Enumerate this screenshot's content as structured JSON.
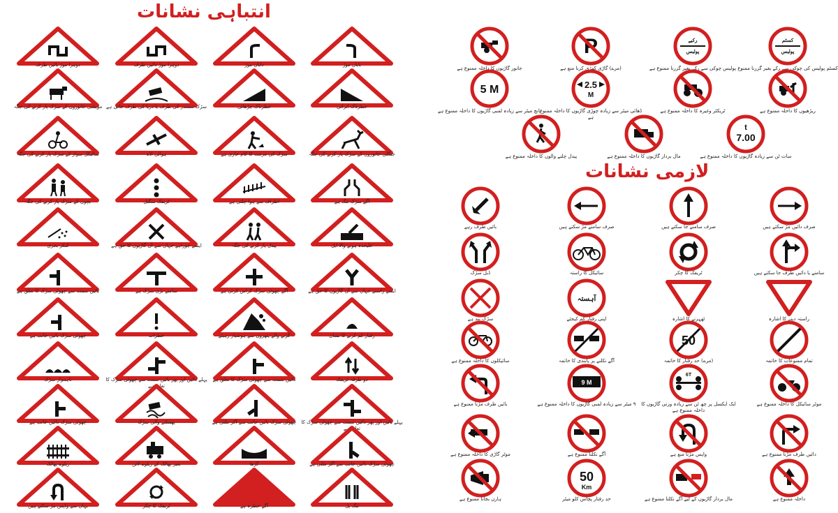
{
  "warning_title": "انتباہی نشانات",
  "mandatory_title": "لازمی نشانات",
  "warning_signs": [
    {
      "label": "دوہرا موڑ بائیں طرف",
      "icon": "double-bend-left-icon",
      "g": "dbl"
    },
    {
      "label": "دوہرا موڑ دائیں طرف",
      "icon": "double-bend-right-icon",
      "g": "dbr"
    },
    {
      "label": "دایاں موڑ",
      "icon": "right-bend-icon",
      "g": "rb"
    },
    {
      "label": "بایاں موڑ",
      "icon": "left-bend-icon",
      "g": "lb"
    },
    {
      "label": "مویشی جانوروں کے سڑک پار کرنے کی جگہ",
      "icon": "cattle-crossing-icon",
      "g": "cow"
    },
    {
      "label": "سڑک سمندر کی طرف یا دریا کی طرف جاتی ہے",
      "icon": "quayside-icon",
      "g": "car"
    },
    {
      "label": "خطرناک چڑھائی",
      "icon": "steep-ascent-icon",
      "g": "up"
    },
    {
      "label": "خطرناک اترائی",
      "icon": "steep-descent-icon",
      "g": "down"
    },
    {
      "label": "سائیکل سوار کے سڑک پار کرنے کی جگہ",
      "icon": "cyclist-crossing-icon",
      "g": "bike"
    },
    {
      "label": "ہوائی اڈہ",
      "icon": "airport-icon",
      "g": "plane"
    },
    {
      "label": "سڑک کی مرمت کا کام جاری ہے",
      "icon": "road-works-icon",
      "g": "work"
    },
    {
      "label": "جنگلی جانوروں کے سڑک پار کرنے کی جگہ",
      "icon": "wild-animal-crossing-icon",
      "g": "deer"
    },
    {
      "label": "بچوں کے سڑک پار کرنے کی جگہ",
      "icon": "children-crossing-icon",
      "g": "kids"
    },
    {
      "label": "ٹریفک سگنل",
      "icon": "traffic-signal-icon",
      "g": "signal"
    },
    {
      "label": "اطراف سے ہوا چلتی ہے",
      "icon": "side-wind-icon",
      "g": "wind"
    },
    {
      "label": "آگے سڑک تنگ ہے",
      "icon": "road-narrows-icon",
      "g": "narrow"
    },
    {
      "label": "کنکر بجری",
      "icon": "loose-gravel-icon",
      "g": "gravel"
    },
    {
      "label": "ایسے چوراہے جہاں سے آن گاڑیوں کا حق ہے",
      "icon": "crossroads-icon",
      "g": "x"
    },
    {
      "label": "پیدل پار کرنے کی جگہ",
      "icon": "pedestrian-crossing-icon",
      "g": "ped"
    },
    {
      "label": "علیحدہ ہونے والا ایل",
      "icon": "swing-bridge-icon",
      "g": "bridge"
    },
    {
      "label": "بائیں سمت سے چھوٹی سڑک کا تعلق ہے",
      "icon": "side-road-left-icon",
      "g": "tl"
    },
    {
      "label": "سامنے بڑی سڑک ہے",
      "icon": "t-junction-icon",
      "g": "tj"
    },
    {
      "label": "آگے چھوٹی سڑک کراس کرتی ہے",
      "icon": "minor-crossroad-icon",
      "g": "cross"
    },
    {
      "label": "ایسے راستے جہاں سے آن گاڑیوں کا حق ہے",
      "icon": "y-junction-icon",
      "g": "y"
    },
    {
      "label": "چھوٹی سڑک بائیں جانب ہے",
      "icon": "minor-road-left-icon",
      "g": "tl2"
    },
    {
      "label": "خطرات",
      "icon": "danger-icon",
      "g": "excl"
    },
    {
      "label": "گرنے والے پتھروں سے ہوشیار رہیئے",
      "icon": "falling-rocks-icon",
      "g": "rocks"
    },
    {
      "label": "رفتار کم کرنے کا نشان",
      "icon": "speed-breaker-icon",
      "g": "hump"
    },
    {
      "label": "ناہموار سڑک",
      "icon": "uneven-road-icon",
      "g": "bumpy"
    },
    {
      "label": "پہلے دائیں اور پھر بائیں سمت سے چھوٹی سڑک کا تعلق ہے",
      "icon": "staggered-junction-icon",
      "g": "stag"
    },
    {
      "label": "دائیں سمت سے چھوٹی سڑک کا تعلق ہے",
      "icon": "side-road-right-icon",
      "g": "tr"
    },
    {
      "label": "دو طرفہ ٹریفک",
      "icon": "two-way-traffic-icon",
      "g": "twoway"
    },
    {
      "label": "چھوٹی سڑک دائیں جانب ہے",
      "icon": "minor-road-right-icon",
      "g": "tr2"
    },
    {
      "label": "پھسلنے والی سڑک",
      "icon": "slippery-road-icon",
      "g": "slip"
    },
    {
      "label": "چھوٹی سڑک بائیں جانب سے آکر ملتی ہے",
      "icon": "merge-left-icon",
      "g": "ml"
    },
    {
      "label": "پہلے بائیں اور پھر دائیں سمت سے چھوٹی سڑک کا تعلق ہے",
      "icon": "staggered-junction-2-icon",
      "g": "stag2"
    },
    {
      "label": "ریلوے پھاٹک",
      "icon": "railway-gate-icon",
      "g": "gate"
    },
    {
      "label": "بغیر پھاٹک کے ریلوے لائن",
      "icon": "unguarded-railway-icon",
      "g": "train"
    },
    {
      "label": "گڑھا",
      "icon": "pothole-icon",
      "g": "dip"
    },
    {
      "label": "چھوٹی سڑک دائیں جانب سے آکر ملتی ہے",
      "icon": "merge-right-icon",
      "g": "mr"
    },
    {
      "label": "یہاں سے واپس مڑ سکتے ہیں",
      "icon": "u-turn-icon",
      "g": "uturn"
    },
    {
      "label": "ٹریفک کا چکر",
      "icon": "roundabout-icon",
      "g": "round"
    },
    {
      "label": "آگے خطرہ ہے",
      "icon": "hazard-ahead-icon",
      "g": "solid"
    },
    {
      "label": "تنگ پل",
      "icon": "narrow-bridge-icon",
      "g": "nbridge"
    }
  ],
  "prohibitory_signs": [
    {
      "label": "جانور گاڑیوں کا داخلہ ممنوع ہے",
      "icon": "no-animal-carts-icon",
      "g": "cart"
    },
    {
      "label": "(مرے) گاڑی کھڑی کرنا منع ہے",
      "icon": "no-parking-icon",
      "g": "P"
    },
    {
      "label": "پولیس چوکی سے رکے بغیر گزرنا ممنوع ہے",
      "icon": "police-stop-icon",
      "g": "police",
      "top": "رکیے",
      "bottom": "پولیس"
    },
    {
      "label": "کسٹم پولیس کی چوکی سے رکے بغیر گزرنا ممنوع ہے",
      "icon": "customs-stop-icon",
      "g": "police",
      "top": "کسٹم",
      "bottom": "پولیس"
    },
    {
      "label": "پانچ میٹر سے زیادہ لمبی گاڑیوں کا داخلہ ممنوع ہے",
      "icon": "length-limit-icon",
      "g": "txt",
      "text": "5 M"
    },
    {
      "label": "ڈھائی میٹر سے زیادہ چوڑی گاڑیوں کا داخلہ ممنوع ہے",
      "icon": "width-limit-icon",
      "g": "width",
      "text": "2.5",
      "sub": "M"
    },
    {
      "label": "ٹریکٹر وغیرہ کا داخلہ ممنوع ہے",
      "icon": "no-tractor-icon",
      "g": "tractor"
    },
    {
      "label": "ریڑھیوں کا داخلہ ممنوع ہے",
      "icon": "no-handcart-icon",
      "g": "handcart"
    },
    {
      "label": "پیدل چلنے والوں کا داخلہ ممنوع ہے",
      "icon": "no-pedestrians-icon",
      "g": "noped"
    },
    {
      "label": "مال بردار گاڑیوں کا داخلہ ممنوع ہے",
      "icon": "no-trucks-icon",
      "g": "truck"
    },
    {
      "label": "سات ٹن سے زیادہ گاڑیوں کا داخلہ ممنوع ہے",
      "icon": "weight-limit-icon",
      "g": "ton",
      "top": "t",
      "text": "7.00"
    }
  ],
  "mandatory_signs": [
    {
      "label": "بائیں طرف رہے",
      "icon": "keep-left-icon",
      "g": "kl"
    },
    {
      "label": "صرف سامنے مڑ سکتے ہیں",
      "icon": "left-arrow-icon",
      "g": "la"
    },
    {
      "label": "صرف سامنے جا سکتے ہیں",
      "icon": "ahead-only-icon",
      "g": "ua"
    },
    {
      "label": "صرف دائیں مڑ سکتے ہیں",
      "icon": "right-arrow-icon",
      "g": "ra"
    },
    {
      "label": "ڈبل سڑک",
      "icon": "dual-road-icon",
      "g": "dual"
    },
    {
      "label": "سائیکل کا راستہ",
      "icon": "cycle-route-icon",
      "g": "cyc"
    },
    {
      "label": "ٹریفک کا چکر",
      "icon": "roundabout-mandatory-icon",
      "g": "rnd"
    },
    {
      "label": "سامنے یا دائیں طرف جا سکتے ہیں",
      "icon": "ahead-or-right-icon",
      "g": "aor"
    },
    {
      "label": "سڑک بند ہے",
      "icon": "road-closed-icon",
      "g": "closed"
    },
    {
      "label": "اپنی رفتار کم کیجئے",
      "icon": "slow-down-icon",
      "g": "slow",
      "text": "آہستہ"
    },
    {
      "label": "ٹھہرنے کا اشارہ",
      "icon": "give-way-icon",
      "g": "yield"
    },
    {
      "label": "راستہ دینے کا اشارہ",
      "icon": "give-way-2-icon",
      "g": "yield2"
    },
    {
      "label": "سائیکلوں کا داخلہ ممنوع ہے",
      "icon": "no-cycles-icon",
      "g": "nocyc"
    },
    {
      "label": "آگے نکلنے پر پابندی کا خاتمہ",
      "icon": "end-no-overtaking-icon",
      "g": "endover"
    },
    {
      "label": "(مرے) حد رفتار کا خاتمہ",
      "icon": "end-speed-limit-icon",
      "g": "end50",
      "text": "50"
    },
    {
      "label": "تمام ممنوعات کا خاتمہ",
      "icon": "end-all-restrictions-icon",
      "g": "endall"
    },
    {
      "label": "بائیں طرف مڑنا ممنوع ہے",
      "icon": "no-left-turn-icon",
      "g": "nlt"
    },
    {
      "label": "۹ میٹر سے زیادہ لمبی گاڑیوں کا داخلہ ممنوع ہے",
      "icon": "length-9m-icon",
      "g": "len9",
      "text": "9 M"
    },
    {
      "label": "ایک ایکسل پر چھ ٹن سے زیادہ وزنی گاڑیوں کا داخلہ ممنوع ہے",
      "icon": "axle-weight-icon",
      "g": "axle",
      "text": "6T"
    },
    {
      "label": "موٹر سائیکل کا داخلہ ممنوع ہے",
      "icon": "no-motorcycles-icon",
      "g": "moto"
    },
    {
      "label": "موٹر گاڑی کا داخلہ ممنوع ہے",
      "icon": "no-motor-vehicles-icon",
      "g": "nocar"
    },
    {
      "label": "آگے نکلنا ممنوع ہے",
      "icon": "no-overtaking-icon",
      "g": "noover"
    },
    {
      "label": "واپس مڑنا منع ہے",
      "icon": "no-u-turn-icon",
      "g": "nout"
    },
    {
      "label": "دائیں طرف مڑنا ممنوع ہے",
      "icon": "no-right-turn-icon",
      "g": "nrt"
    },
    {
      "label": "ہارن بجانا ممنوع ہے",
      "icon": "no-horn-icon",
      "g": "horn"
    },
    {
      "label": "حد رفتار پچاس کلو میٹر",
      "icon": "speed-limit-50-icon",
      "g": "spd",
      "text": "50",
      "sub": "Km"
    },
    {
      "label": "مال بردار گاڑیوں کے لیے آگے نکلنا ممنوع ہے",
      "icon": "no-truck-overtaking-icon",
      "g": "trover"
    },
    {
      "label": "داخلہ ممنوع ہے",
      "icon": "no-entry-icon",
      "g": "noentry"
    }
  ],
  "colors": {
    "red": "#d21f1f",
    "black": "#111111",
    "white": "#ffffff"
  }
}
